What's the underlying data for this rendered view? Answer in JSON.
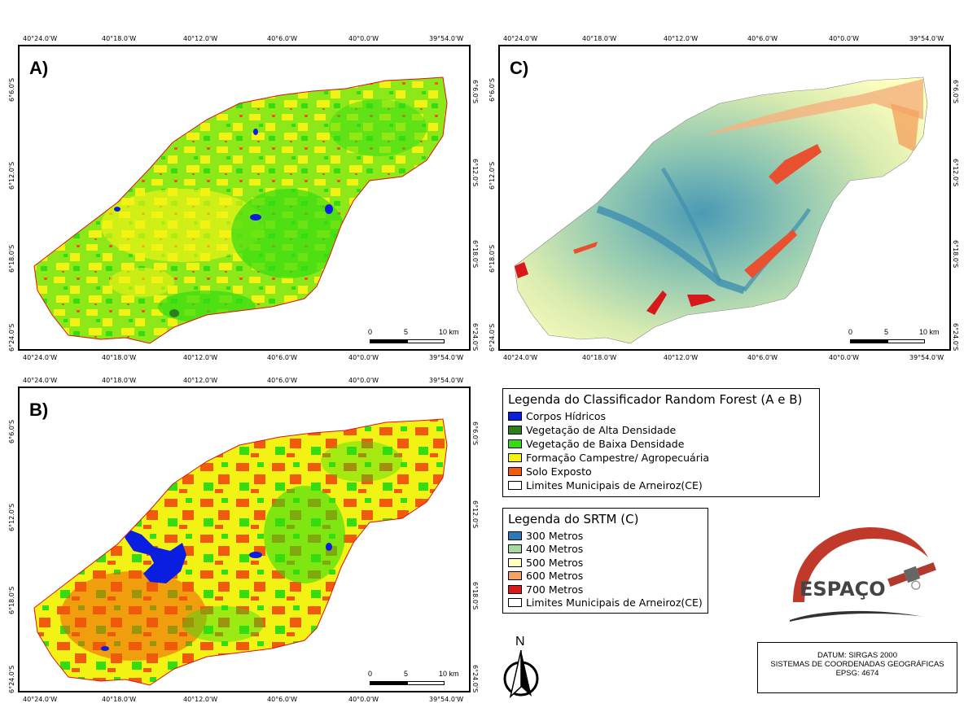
{
  "panels": {
    "A": {
      "label": "A)"
    },
    "B": {
      "label": "B)"
    },
    "C": {
      "label": "C)"
    }
  },
  "axes": {
    "longitude_ticks": [
      "40°24.0'W",
      "40°18.0'W",
      "40°12.0'W",
      "40°6.0'W",
      "40°0.0'W",
      "39°54.0'W"
    ],
    "latitude_ticks": [
      "6°6.0'S",
      "6°12.0'S",
      "6°18.0'S",
      "6°24.0'S"
    ]
  },
  "scalebar": {
    "labels": [
      "0",
      "5",
      "10 km"
    ]
  },
  "legend_rf": {
    "title": "Legenda do Classificador Random Forest (A e B)",
    "items": [
      {
        "label": "Corpos Hídricos",
        "color": "#0a1ee0"
      },
      {
        "label": "Vegetação de Alta Densidade",
        "color": "#2e7d1f"
      },
      {
        "label": "Vegetação de Baixa Densidade",
        "color": "#33dd11"
      },
      {
        "label": "Formação Campestre/ Agropecuária",
        "color": "#f2f214"
      },
      {
        "label": "Solo Exposto",
        "color": "#f05a0a"
      },
      {
        "label": "Limites Municipais de Arneiroz(CE)",
        "color": "#ffffff"
      }
    ]
  },
  "legend_srtm": {
    "title": "Legenda do SRTM (C)",
    "items": [
      {
        "label": "300 Metros",
        "color": "#2c7bb6"
      },
      {
        "label": "400 Metros",
        "color": "#a6d9a0"
      },
      {
        "label": "500 Metros",
        "color": "#ffffbf"
      },
      {
        "label": "600 Metros",
        "color": "#f4a460"
      },
      {
        "label": "700 Metros",
        "color": "#d7191c"
      },
      {
        "label": "Limites Municipais de Arneiroz(CE)",
        "color": "#ffffff"
      }
    ]
  },
  "logo": {
    "text": "ESPAÇO"
  },
  "north_arrow": {
    "label": "N"
  },
  "datum": {
    "line1": "DATUM: SIRGAS 2000",
    "line2": "SISTEMAS DE COORDENADAS GEOGRÁFICAS",
    "line3": "EPSG: 4674"
  },
  "colors": {
    "water": "#0a1ee0",
    "dense_veg": "#2e7d1f",
    "sparse_veg": "#33dd11",
    "field": "#f2f214",
    "bare_soil": "#f05a0a",
    "boundary": "#e01010"
  }
}
